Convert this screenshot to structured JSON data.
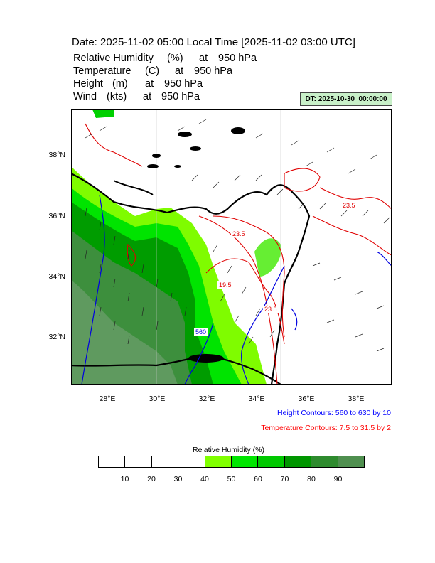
{
  "header": {
    "title": "Date: 2025-11-02  05:00 Local Time [2025-11-02  03:00 UTC]",
    "fields": [
      {
        "name": "Relative Humidity",
        "unit": "(%)",
        "at": "at",
        "level": "950 hPa"
      },
      {
        "name": "Temperature",
        "unit": "(C)",
        "at": "at",
        "level": "950 hPa"
      },
      {
        "name": "Height",
        "unit": "(m)",
        "at": "at",
        "level": "950 hPa"
      },
      {
        "name": "Wind",
        "unit": "(kts)",
        "at": "at",
        "level": "950 hPa"
      }
    ],
    "dt_badge": "DT: 2025-10-30_00:00:00"
  },
  "map": {
    "lat_labels": [
      "38°N",
      "36°N",
      "34°N",
      "32°N"
    ],
    "lon_labels": [
      "28°E",
      "30°E",
      "32°E",
      "34°E",
      "36°E",
      "38°E"
    ],
    "contour_labels": [
      {
        "text": "23.5",
        "color": "#e00000"
      },
      {
        "text": "23.5",
        "color": "#e00000"
      },
      {
        "text": "19.5",
        "color": "#e00000"
      },
      {
        "text": "23.5",
        "color": "#e00000"
      },
      {
        "text": "560",
        "color": "#0000e0"
      }
    ]
  },
  "notes": {
    "height": "Height Contours: 560 to 630 by 10",
    "height_color": "#0000ff",
    "temperature": "Temperature Contours: 7.5 to 31.5 by 2",
    "temperature_color": "#ff0000"
  },
  "colorbar": {
    "title": "Relative Humidity  (%)",
    "colors": [
      "#ffffff",
      "#ffffff",
      "#ffffff",
      "#ffffff",
      "#80ff00",
      "#00e600",
      "#00c800",
      "#009600",
      "#2e8b2e",
      "#4f8f4f"
    ],
    "labels": [
      "10",
      "20",
      "30",
      "40",
      "50",
      "60",
      "70",
      "80",
      "90"
    ]
  }
}
